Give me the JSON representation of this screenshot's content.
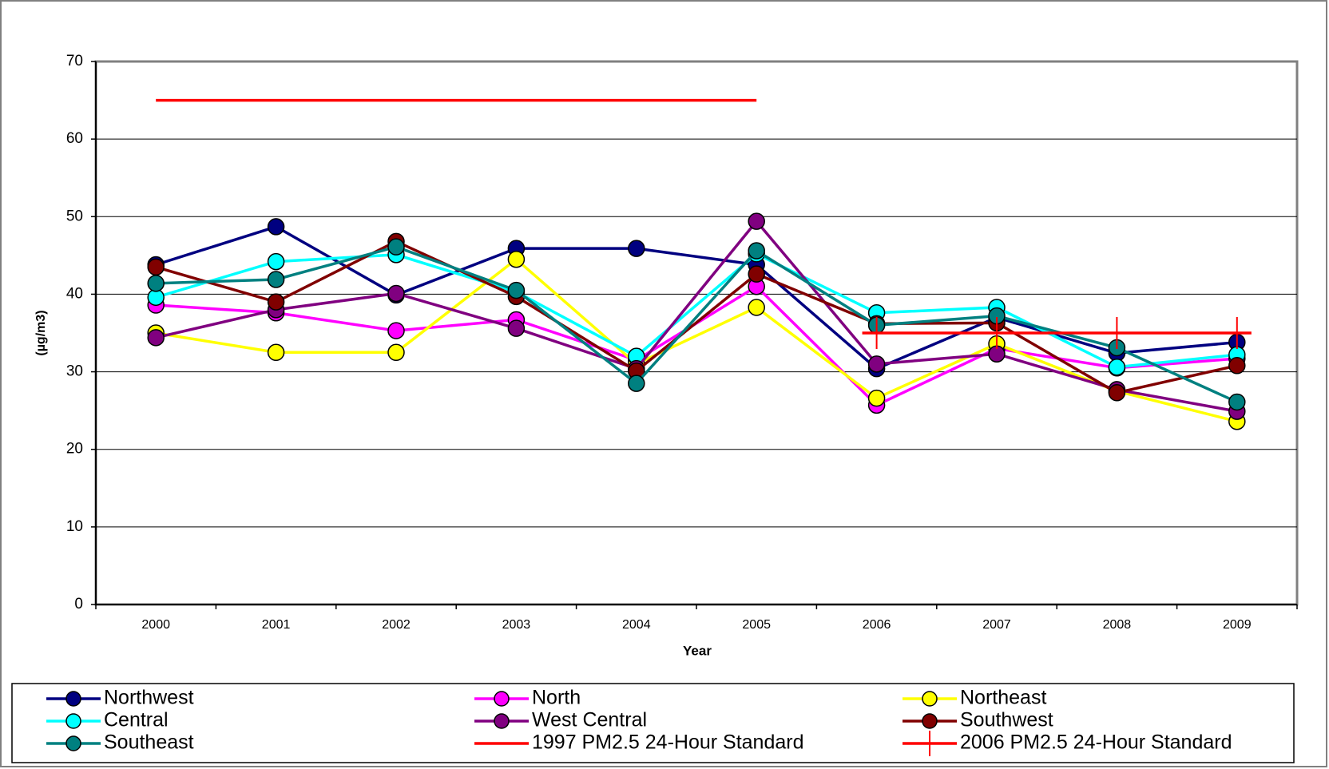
{
  "chart_data": {
    "type": "line",
    "xlabel": "Year",
    "ylabel": "(µg/m3)",
    "categories": [
      "2000",
      "2001",
      "2002",
      "2003",
      "2004",
      "2005",
      "2006",
      "2007",
      "2008",
      "2009"
    ],
    "ylim": [
      0,
      70
    ],
    "yticks": [
      0,
      10,
      20,
      30,
      40,
      50,
      60,
      70
    ],
    "grid": true,
    "legend": "bottom",
    "series": [
      {
        "name": "Northwest",
        "color": "#000080",
        "marker": "circle",
        "values": [
          43.8,
          48.7,
          39.9,
          45.9,
          45.9,
          43.8,
          30.4,
          37,
          32.4,
          33.8
        ]
      },
      {
        "name": "North",
        "color": "#ff00ff",
        "marker": "circle",
        "values": [
          38.6,
          37.6,
          35.3,
          36.7,
          31.5,
          41,
          25.7,
          33,
          30.5,
          31.7
        ]
      },
      {
        "name": "Northeast",
        "color": "#ffff00",
        "marker": "circle",
        "values": [
          35,
          32.5,
          32.5,
          44.5,
          31,
          38.3,
          26.6,
          33.6,
          27.5,
          23.6
        ]
      },
      {
        "name": "Central",
        "color": "#00ffff",
        "marker": "circle",
        "values": [
          39.6,
          44.2,
          45.1,
          40.3,
          32,
          45.2,
          37.6,
          38.3,
          30.6,
          32.2
        ]
      },
      {
        "name": "West Central",
        "color": "#800080",
        "marker": "circle",
        "values": [
          34.4,
          38,
          40.1,
          35.6,
          30.4,
          49.4,
          31,
          32.3,
          27.7,
          24.9
        ]
      },
      {
        "name": "Southwest",
        "color": "#800000",
        "marker": "circle",
        "values": [
          43.5,
          39,
          46.8,
          39.7,
          30.1,
          42.6,
          36.2,
          36.3,
          27.3,
          30.8
        ]
      },
      {
        "name": "Southeast",
        "color": "#008080",
        "marker": "circle",
        "values": [
          41.4,
          41.9,
          46.1,
          40.5,
          28.5,
          45.6,
          36,
          37.2,
          33.1,
          26.1
        ]
      },
      {
        "name": "1997 PM2.5 24-Hour Standard",
        "color": "#ff0000",
        "marker": "none",
        "values": [
          65,
          65,
          65,
          65,
          65,
          65,
          null,
          null,
          null,
          null
        ]
      },
      {
        "name": "2006 PM2.5 24-Hour Standard",
        "color": "#ff0000",
        "marker": "plus",
        "values": [
          null,
          null,
          null,
          null,
          null,
          null,
          35,
          35,
          35,
          35
        ]
      }
    ]
  }
}
